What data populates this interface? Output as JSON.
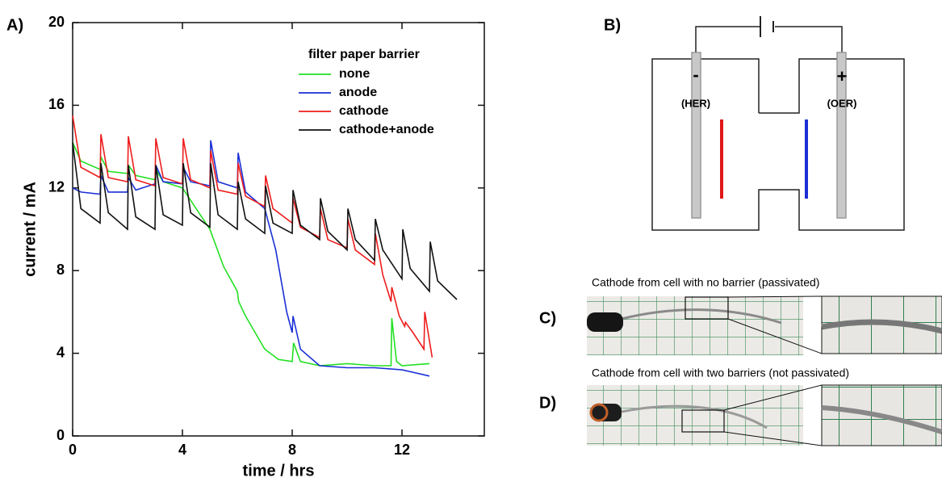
{
  "labels": [
    "A)",
    "B)",
    "C)",
    "D)"
  ],
  "chart_data": {
    "type": "line",
    "xlabel": "time / hrs",
    "ylabel": "current / mA",
    "legend_title": "filter paper barrier",
    "legend": "upper right",
    "xlim": [
      0,
      15
    ],
    "ylim": [
      0,
      20
    ],
    "xticks": [
      0,
      4,
      8,
      12
    ],
    "yticks": [
      0,
      4,
      8,
      12,
      16,
      20
    ],
    "series": [
      {
        "name": "none",
        "color": "#22e022",
        "x": [
          0,
          0.3,
          1,
          1.03,
          1.3,
          2,
          2.03,
          2.3,
          3,
          3.03,
          3.3,
          4,
          4.5,
          5,
          5.5,
          6,
          6.05,
          6.3,
          7,
          7.5,
          8,
          8.05,
          8.3,
          9,
          10,
          11,
          11.6,
          11.63,
          11.8,
          12,
          13
        ],
        "values": [
          14.2,
          13.3,
          12.9,
          13.5,
          12.8,
          12.7,
          13.1,
          12.6,
          12.4,
          12.9,
          12.3,
          12.0,
          11.0,
          10.0,
          8.2,
          7.0,
          6.5,
          5.8,
          4.2,
          3.7,
          3.6,
          4.5,
          3.6,
          3.4,
          3.5,
          3.4,
          3.4,
          5.7,
          3.6,
          3.4,
          3.5
        ]
      },
      {
        "name": "anode",
        "color": "#1a2fd6",
        "x": [
          0,
          0.3,
          1,
          1.03,
          1.3,
          2,
          2.03,
          2.3,
          3,
          3.03,
          3.3,
          4,
          4.03,
          4.3,
          5,
          5.03,
          5.3,
          6,
          6.03,
          6.3,
          7,
          7.4,
          7.8,
          8,
          8.03,
          8.3,
          9,
          10,
          11,
          12,
          13
        ],
        "values": [
          12.0,
          11.8,
          11.7,
          12.6,
          11.8,
          11.8,
          12.5,
          11.9,
          12.2,
          13.1,
          12.3,
          12.2,
          13.0,
          12.3,
          12.1,
          14.3,
          12.3,
          12.0,
          13.7,
          11.8,
          11.0,
          9,
          6,
          5.0,
          5.8,
          4.2,
          3.4,
          3.3,
          3.3,
          3.2,
          2.9
        ]
      },
      {
        "name": "cathode",
        "color": "#ee1c1c",
        "x": [
          0,
          0.3,
          1,
          1.03,
          1.3,
          2,
          2.03,
          2.3,
          3,
          3.03,
          3.3,
          4,
          4.03,
          4.3,
          5,
          5.03,
          5.3,
          6,
          6.03,
          6.3,
          7,
          7.03,
          7.3,
          8,
          8.03,
          8.3,
          9,
          9.03,
          9.3,
          10,
          10.03,
          10.3,
          11,
          11.03,
          11.3,
          11.6,
          11.63,
          11.9,
          12.1,
          12.13,
          12.4,
          12.8,
          12.83,
          13.1
        ],
        "values": [
          15.5,
          13,
          12.5,
          14.6,
          12.5,
          12.3,
          14.5,
          12.4,
          12.1,
          14.4,
          12.5,
          12.2,
          14.4,
          12.4,
          12.0,
          13.8,
          11.9,
          11.7,
          13.2,
          11.6,
          11.1,
          12.6,
          11.0,
          10.3,
          11.5,
          10.1,
          9.6,
          11.0,
          9.5,
          9.1,
          10.5,
          9.0,
          8.3,
          9.8,
          7.8,
          6.5,
          7.2,
          5.8,
          5.3,
          5.5,
          5.0,
          4.2,
          6.0,
          3.8
        ]
      },
      {
        "name": "cathode+anode",
        "color": "#111111",
        "x": [
          0,
          0.3,
          1,
          1.03,
          1.3,
          2,
          2.03,
          2.3,
          3,
          3.03,
          3.3,
          4,
          4.03,
          4.3,
          5,
          5.03,
          5.3,
          6,
          6.03,
          6.3,
          7,
          7.03,
          7.3,
          8,
          8.03,
          8.3,
          9,
          9.03,
          9.3,
          10,
          10.03,
          10.3,
          11,
          11.03,
          11.3,
          12,
          12.03,
          12.3,
          13,
          13.03,
          13.3,
          14
        ],
        "values": [
          14.2,
          11.0,
          10.3,
          13.2,
          10.8,
          10.0,
          13.1,
          10.6,
          10.0,
          13.1,
          10.7,
          10.2,
          13.2,
          10.8,
          10.1,
          13.2,
          10.7,
          10.0,
          12.3,
          10.5,
          9.8,
          12.1,
          10.3,
          9.8,
          11.9,
          10.2,
          9.5,
          11.5,
          9.9,
          9.0,
          11.0,
          9.5,
          8.5,
          10.5,
          9.0,
          7.6,
          10.0,
          8.1,
          7.0,
          9.4,
          7.5,
          6.6
        ]
      }
    ]
  },
  "diagram": {
    "minus": "-",
    "plus": "+",
    "her": "(HER)",
    "oer": "(OER)"
  },
  "photos": {
    "c_caption": "Cathode from cell with no barrier (passivated)",
    "d_caption": "Cathode from cell with two barriers (not passivated)"
  }
}
